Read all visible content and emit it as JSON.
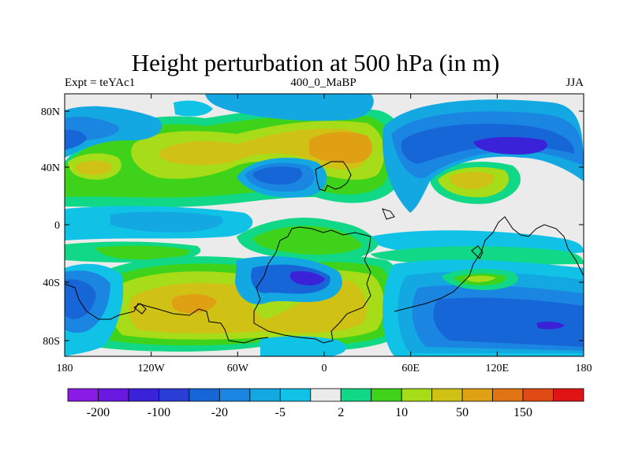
{
  "title": "Height perturbation at 500 hPa (in m)",
  "subtitle_left": "Expt = teYAc1",
  "subtitle_center": "400_0_MaBP",
  "subtitle_right": "JJA",
  "axes": {
    "lon_ticks": [
      "180",
      "120W",
      "60W",
      "0",
      "60E",
      "120E",
      "180"
    ],
    "lat_ticks": [
      "80N",
      "40N",
      "0",
      "40S",
      "80S"
    ]
  },
  "colors": {
    "background_field": "#ebebeb",
    "palette": [
      "#8a1ae6",
      "#6a18e0",
      "#3a22d8",
      "#2a3ed6",
      "#1766d8",
      "#1b86e2",
      "#14a8e2",
      "#10c2e6",
      "#ebebeb",
      "#10d886",
      "#3fd21a",
      "#a6dc18",
      "#d0c214",
      "#e0a014",
      "#e07414",
      "#e04a14",
      "#e01414"
    ]
  },
  "colorbar": {
    "labels": [
      "-200",
      "-100",
      "-20",
      "-5",
      "2",
      "10",
      "50",
      "150"
    ]
  }
}
